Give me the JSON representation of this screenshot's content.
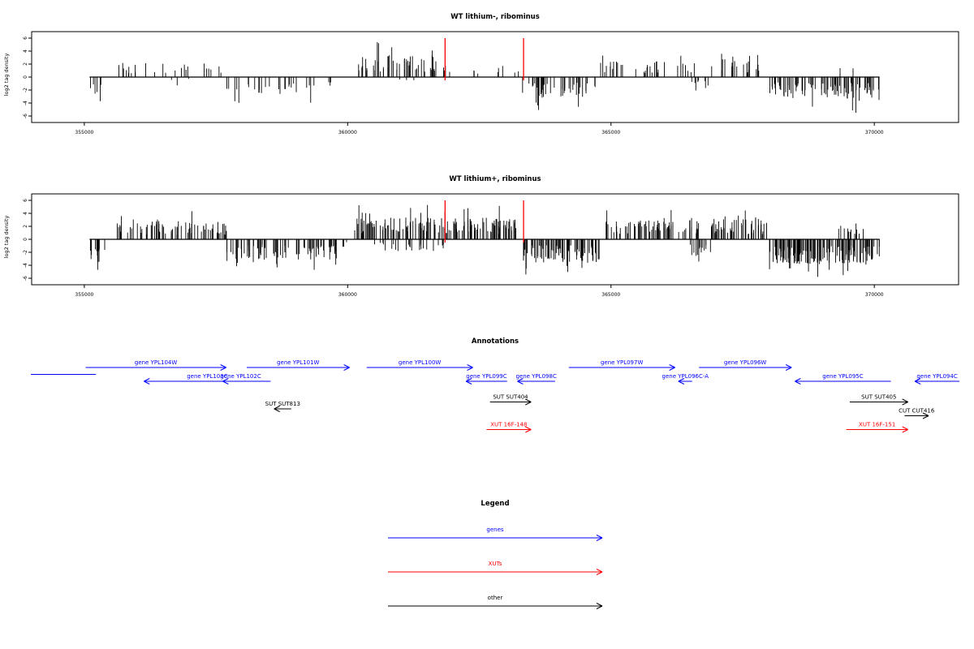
{
  "chart_data": [
    {
      "type": "bar",
      "title": "WT lithium-, ribominus",
      "xlabel": "",
      "ylabel": "log2 tag density",
      "xlim": [
        354000,
        371600
      ],
      "ylim": [
        -7,
        7
      ],
      "x_ticks": [
        355000,
        360000,
        365000,
        370000
      ],
      "y_ticks": [
        -6,
        -4,
        -2,
        0,
        2,
        4,
        6
      ],
      "marker_lines_x": [
        361850,
        363340
      ],
      "marker_color": "#ff0000",
      "bar_color": "#000000",
      "regions": [
        {
          "start": 355100,
          "end": 355400,
          "sign": -1,
          "amp": 3.0,
          "n": 6
        },
        {
          "start": 355600,
          "end": 357600,
          "sign": 1,
          "amp": 2.2,
          "n": 24
        },
        {
          "start": 356600,
          "end": 357300,
          "sign": -1,
          "amp": 1.0,
          "n": 3
        },
        {
          "start": 357700,
          "end": 359300,
          "sign": -1,
          "amp": 2.6,
          "n": 26
        },
        {
          "start": 359300,
          "end": 359700,
          "sign": -1,
          "amp": 1.5,
          "n": 4
        },
        {
          "start": 360200,
          "end": 361700,
          "sign": 1,
          "amp": 3.4,
          "n": 55
        },
        {
          "start": 361700,
          "end": 363300,
          "sign": 1,
          "amp": 1.8,
          "n": 12
        },
        {
          "start": 360900,
          "end": 361300,
          "sign": -1,
          "amp": 1.0,
          "n": 3
        },
        {
          "start": 363300,
          "end": 364700,
          "sign": -1,
          "amp": 3.2,
          "n": 45
        },
        {
          "start": 364800,
          "end": 366600,
          "sign": 1,
          "amp": 2.5,
          "n": 34
        },
        {
          "start": 366500,
          "end": 366900,
          "sign": -1,
          "amp": 2.2,
          "n": 8
        },
        {
          "start": 366900,
          "end": 367300,
          "sign": 1,
          "amp": 2.8,
          "n": 8
        },
        {
          "start": 367300,
          "end": 368000,
          "sign": 1,
          "amp": 2.6,
          "n": 14
        },
        {
          "start": 368000,
          "end": 369300,
          "sign": -1,
          "amp": 3.3,
          "n": 50
        },
        {
          "start": 369300,
          "end": 369600,
          "sign": 1,
          "amp": 1.5,
          "n": 3
        },
        {
          "start": 369300,
          "end": 370100,
          "sign": -1,
          "amp": 3.6,
          "n": 34
        }
      ]
    },
    {
      "type": "bar",
      "title": "WT lithium+, ribominus",
      "xlabel": "",
      "ylabel": "log2 tag density",
      "xlim": [
        354000,
        371600
      ],
      "ylim": [
        -7,
        7
      ],
      "x_ticks": [
        355000,
        360000,
        365000,
        370000
      ],
      "y_ticks": [
        -6,
        -4,
        -2,
        0,
        2,
        4,
        6
      ],
      "marker_lines_x": [
        361850,
        363340
      ],
      "marker_color": "#ff0000",
      "bar_color": "#000000",
      "regions": [
        {
          "start": 355100,
          "end": 355400,
          "sign": -1,
          "amp": 3.5,
          "n": 14
        },
        {
          "start": 355600,
          "end": 357700,
          "sign": 1,
          "amp": 2.8,
          "n": 75
        },
        {
          "start": 357700,
          "end": 359800,
          "sign": -1,
          "amp": 3.2,
          "n": 80
        },
        {
          "start": 359800,
          "end": 360100,
          "sign": -1,
          "amp": 1.2,
          "n": 3
        },
        {
          "start": 360100,
          "end": 363300,
          "sign": 1,
          "amp": 3.4,
          "n": 150
        },
        {
          "start": 360300,
          "end": 361900,
          "sign": -1,
          "amp": 1.8,
          "n": 25
        },
        {
          "start": 363300,
          "end": 364800,
          "sign": -1,
          "amp": 3.6,
          "n": 85
        },
        {
          "start": 364900,
          "end": 366700,
          "sign": 1,
          "amp": 3.0,
          "n": 80
        },
        {
          "start": 366500,
          "end": 366900,
          "sign": -1,
          "amp": 2.6,
          "n": 14
        },
        {
          "start": 366900,
          "end": 368000,
          "sign": 1,
          "amp": 3.2,
          "n": 55
        },
        {
          "start": 368000,
          "end": 369300,
          "sign": -1,
          "amp": 3.8,
          "n": 95
        },
        {
          "start": 369300,
          "end": 369800,
          "sign": 1,
          "amp": 2.5,
          "n": 14
        },
        {
          "start": 369300,
          "end": 370100,
          "sign": -1,
          "amp": 3.8,
          "n": 55
        }
      ]
    }
  ],
  "annotations": {
    "title": "Annotations",
    "genes_color": "#0000ff",
    "xuts_color": "#ff0000",
    "other_color": "#000000",
    "items": [
      {
        "label": "",
        "start": 354000,
        "end": 355900,
        "dir": "none",
        "row": 0.5,
        "color": "#0000ff"
      },
      {
        "label": "gene YPL104W",
        "start": 355600,
        "end": 359700,
        "dir": "right",
        "row": 0,
        "color": "#0000ff"
      },
      {
        "label": "gene YPL103C",
        "start": 357300,
        "end": 361000,
        "dir": "left",
        "row": 1,
        "color": "#0000ff"
      },
      {
        "label": "gene YPL102C",
        "start": 359600,
        "end": 360650,
        "dir": "left",
        "row": 1,
        "color": "#0000ff"
      },
      {
        "label": "gene YPL101W",
        "start": 360300,
        "end": 363300,
        "dir": "right",
        "row": 0,
        "color": "#0000ff"
      },
      {
        "label": "gene YPL100W",
        "start": 363800,
        "end": 366900,
        "dir": "right",
        "row": 0,
        "color": "#0000ff"
      },
      {
        "label": "gene YPL099C",
        "start": 366700,
        "end": 367900,
        "dir": "left",
        "row": 1,
        "color": "#0000ff"
      },
      {
        "label": "gene YPL098C",
        "start": 368200,
        "end": 369300,
        "dir": "left",
        "row": 1,
        "color": "#0000ff"
      },
      {
        "label": "gene YPL097W",
        "start": 369700,
        "end": 372800,
        "dir": "right",
        "row": 0,
        "color": "#0000ff"
      },
      {
        "label": "gene YPL096C-A",
        "start": 372900,
        "end": 373300,
        "dir": "left",
        "row": 1,
        "color": "#0000ff"
      },
      {
        "label": "gene YPL096W",
        "start": 373500,
        "end": 376200,
        "dir": "right",
        "row": 0,
        "color": "#0000ff"
      },
      {
        "label": "gene YPL095C",
        "start": 376300,
        "end": 379100,
        "dir": "left",
        "row": 1,
        "color": "#0000ff"
      },
      {
        "label": "gene YPL094C",
        "start": 379800,
        "end": 381100,
        "dir": "left",
        "row": 1,
        "color": "#0000ff"
      },
      {
        "label": "SUT SUT813",
        "start": 361100,
        "end": 361600,
        "dir": "left",
        "row": 3,
        "color": "#000000"
      },
      {
        "label": "SUT SUT404",
        "start": 367400,
        "end": 368600,
        "dir": "right",
        "row": 2.5,
        "color": "#000000"
      },
      {
        "label": "SUT SUT405",
        "start": 377900,
        "end": 379600,
        "dir": "right",
        "row": 2.5,
        "color": "#000000"
      },
      {
        "label": "CUT CUT416",
        "start": 379500,
        "end": 380200,
        "dir": "right",
        "row": 3.5,
        "color": "#000000"
      },
      {
        "label": "XUT 16F-148",
        "start": 367300,
        "end": 368600,
        "dir": "right",
        "row": 4.5,
        "color": "#ff0000"
      },
      {
        "label": "XUT 16F-151",
        "start": 377800,
        "end": 379600,
        "dir": "right",
        "row": 4.5,
        "color": "#ff0000"
      }
    ]
  },
  "legend": {
    "title": "Legend",
    "items": [
      {
        "label": "genes",
        "color": "#0000ff"
      },
      {
        "label": "XUTs",
        "color": "#ff0000"
      },
      {
        "label": "other",
        "color": "#000000"
      }
    ]
  }
}
